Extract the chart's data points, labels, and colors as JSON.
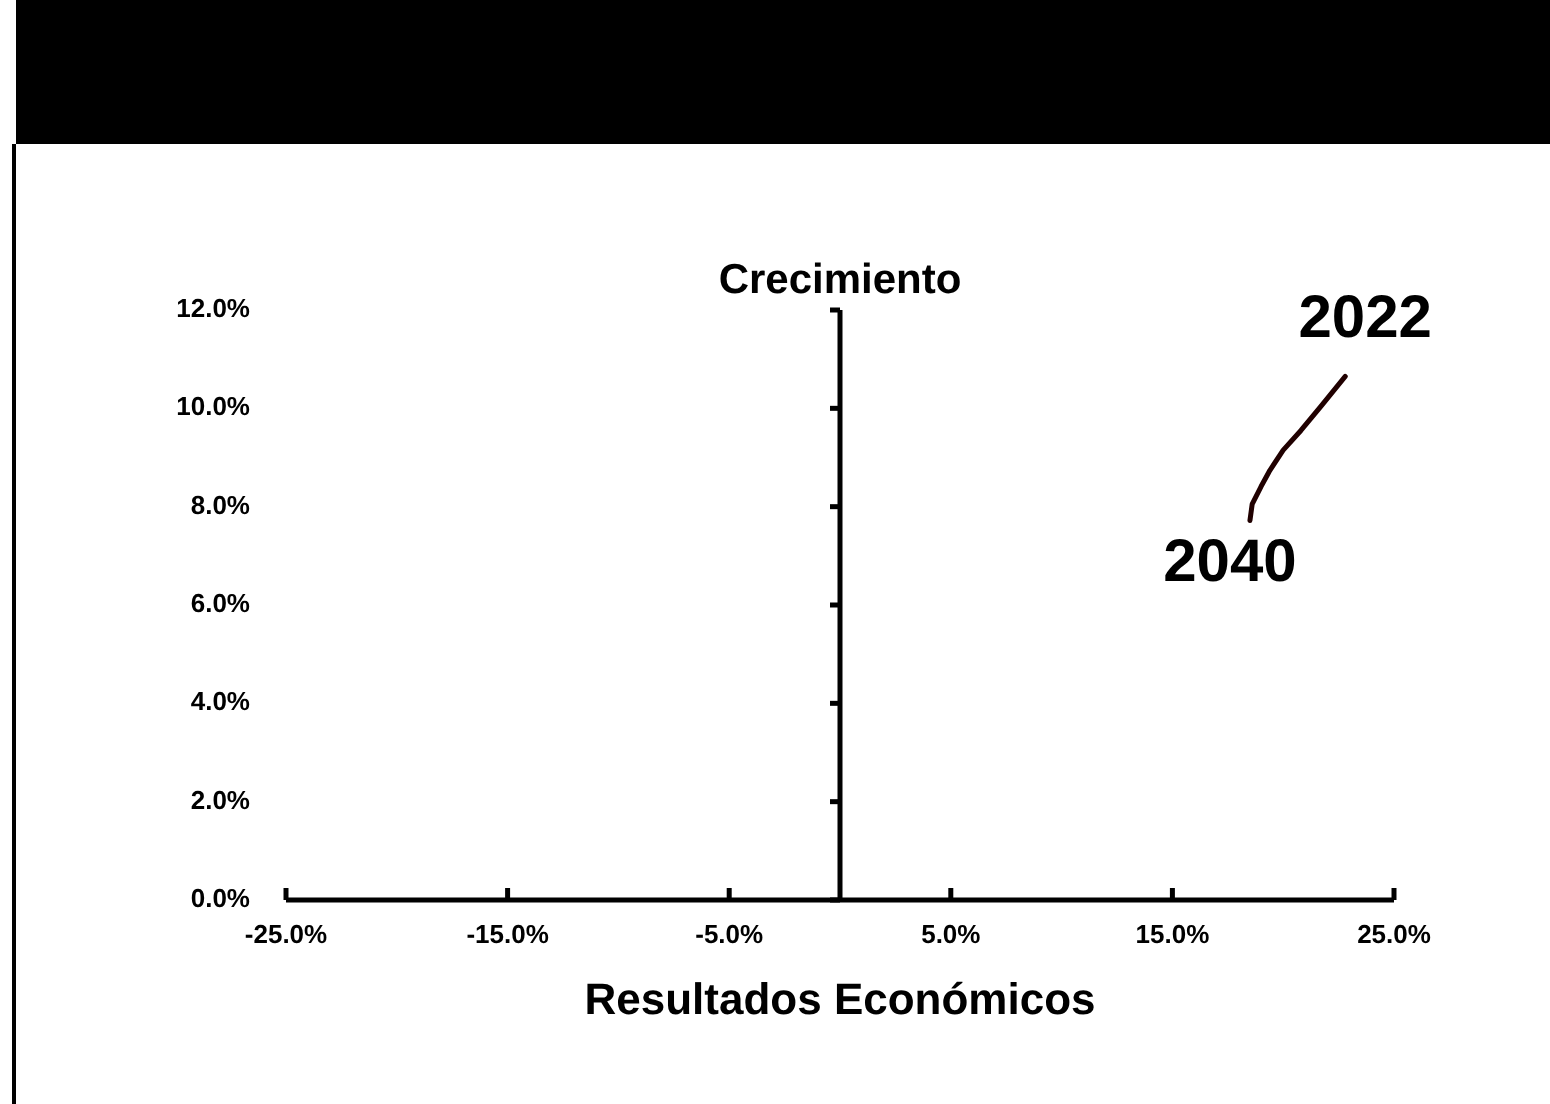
{
  "chart_data": {
    "type": "line",
    "xlabel": "Resultados Económicos",
    "ylabel": "Crecimiento",
    "xlim": [
      -25,
      25
    ],
    "xticks": [
      {
        "value": -25,
        "label": "-25.0%"
      },
      {
        "value": -15,
        "label": "-15.0%"
      },
      {
        "value": -5,
        "label": "-5.0%"
      },
      {
        "value": 5,
        "label": "5.0%"
      },
      {
        "value": 15,
        "label": "15.0%"
      },
      {
        "value": 25,
        "label": "25.0%"
      }
    ],
    "ylim": [
      0,
      12
    ],
    "yticks": [
      {
        "value": 0,
        "label": "0.0%"
      },
      {
        "value": 2,
        "label": "2.0%"
      },
      {
        "value": 4,
        "label": "4.0%"
      },
      {
        "value": 6,
        "label": "6.0%"
      },
      {
        "value": 8,
        "label": "8.0%"
      },
      {
        "value": 10,
        "label": "10.0%"
      },
      {
        "value": 12,
        "label": "12.0%"
      }
    ],
    "series": [
      {
        "color": "#200000",
        "x": [
          22.8,
          21.7,
          20.8,
          20.0,
          19.4,
          19.0,
          18.6,
          18.5
        ],
        "values": [
          10.65,
          10.04,
          9.55,
          9.15,
          8.74,
          8.41,
          8.05,
          7.72
        ]
      }
    ],
    "annotations": [
      {
        "text": "2022",
        "x": 22.8,
        "y": 10.65
      },
      {
        "text": "2040",
        "x": 18.5,
        "y": 7.72
      }
    ],
    "grid": false,
    "legend": false,
    "marker": "none",
    "line_style": "solid"
  }
}
